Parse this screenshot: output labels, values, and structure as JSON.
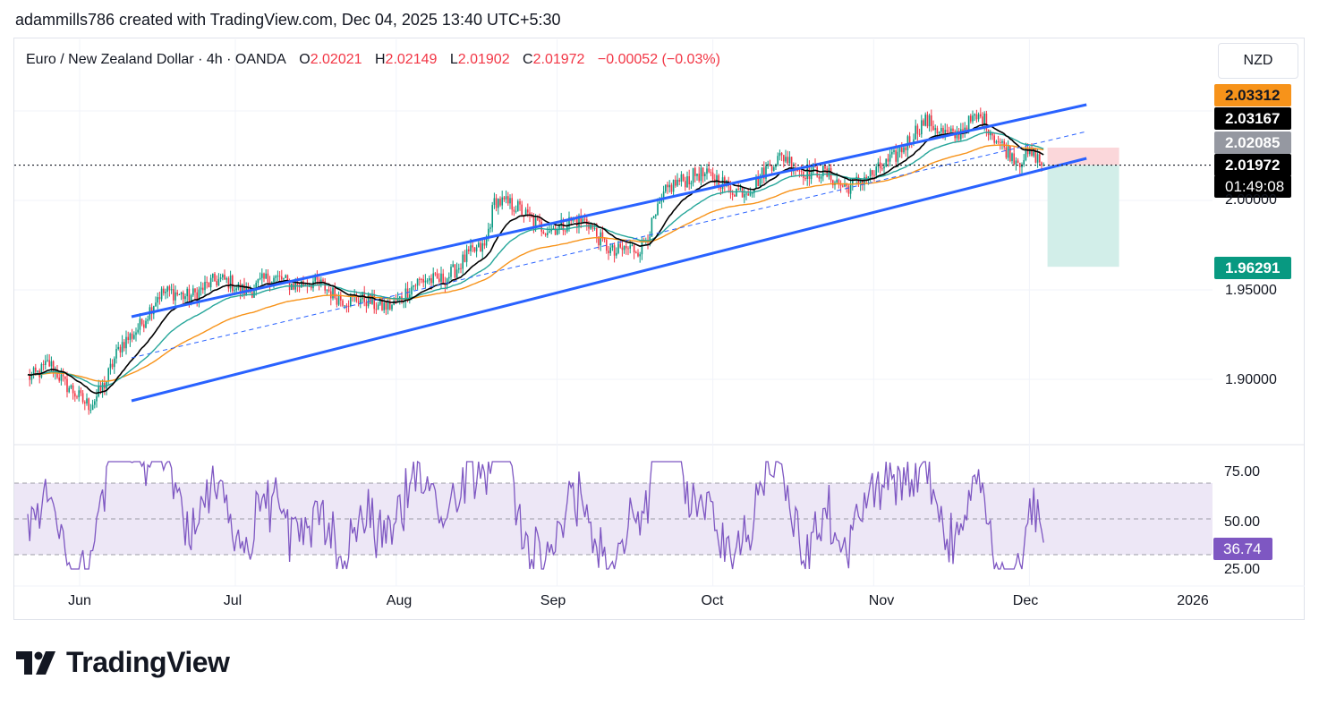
{
  "caption": "adammills786 created with TradingView.com, Dec 04, 2025 13:40 UTC+5:30",
  "legend": {
    "symbol": "Euro / New Zealand Dollar · 4h · OANDA",
    "open_label": "O",
    "open": "2.02021",
    "high_label": "H",
    "high": "2.02149",
    "low_label": "L",
    "low": "2.01902",
    "close_label": "C",
    "close": "2.01972",
    "change": "−0.00052 (−0.03%)"
  },
  "currency_button": "NZD",
  "price_axis": {
    "ticks": [
      "2.00000",
      "1.95000",
      "1.90000"
    ],
    "tags": {
      "ma_long": "2.03312",
      "ma_short": "2.03167",
      "ma_mid": "2.02085",
      "last_price": "2.01972",
      "countdown": "01:49:08",
      "target": "1.96291"
    }
  },
  "rsi_axis": {
    "ticks": [
      "75.00",
      "50.00",
      "25.00"
    ],
    "current": "36.74"
  },
  "time_axis": [
    "Jun",
    "Jul",
    "Aug",
    "Sep",
    "Oct",
    "Nov",
    "Dec",
    "2026"
  ],
  "brand": "TradingView",
  "colors": {
    "up": "#089981",
    "down": "#f23645",
    "channel": "#2962ff",
    "ma_short": "#000000",
    "ma_mid": "#26a69a",
    "ma_long": "#f7931a",
    "rsi": "#7e57c2",
    "rsi_band": "#ede7f6",
    "stop_zone": "#fbd7da",
    "target_zone": "#d2eee9"
  },
  "chart_data": [
    {
      "type": "candlestick",
      "title": "Euro / New Zealand Dollar · 4h · OANDA",
      "ylim": [
        1.87,
        2.05
      ],
      "x_labels": [
        "Jun",
        "Jul",
        "Aug",
        "Sep",
        "Oct",
        "Nov",
        "Dec",
        "2026"
      ],
      "path_points": [
        [
          "May 22",
          1.902
        ],
        [
          "May 26",
          1.91
        ],
        [
          "May 29",
          1.895
        ],
        [
          "Jun 3",
          1.888
        ],
        [
          "Jun 6",
          1.897
        ],
        [
          "Jun 9",
          1.918
        ],
        [
          "Jun 12",
          1.93
        ],
        [
          "Jun 16",
          1.945
        ],
        [
          "Jun 20",
          1.948
        ],
        [
          "Jun 24",
          1.95
        ],
        [
          "Jun 30",
          1.955
        ],
        [
          "Jul 4",
          1.95
        ],
        [
          "Jul 10",
          1.957
        ],
        [
          "Jul 16",
          1.952
        ],
        [
          "Jul 22",
          1.947
        ],
        [
          "Jul 28",
          1.94
        ],
        [
          "Aug 1",
          1.945
        ],
        [
          "Aug 7",
          1.955
        ],
        [
          "Aug 13",
          1.962
        ],
        [
          "Aug 18",
          1.975
        ],
        [
          "Aug 20",
          2.003
        ],
        [
          "Aug 26",
          1.99
        ],
        [
          "Sep 2",
          1.984
        ],
        [
          "Sep 7",
          1.99
        ],
        [
          "Sep 12",
          1.968
        ],
        [
          "Sep 17",
          1.975
        ],
        [
          "Sep 22",
          2.003
        ],
        [
          "Sep 28",
          2.018
        ],
        [
          "Oct 4",
          2.005
        ],
        [
          "Oct 9",
          2.01
        ],
        [
          "Oct 15",
          2.025
        ],
        [
          "Oct 20",
          2.015
        ],
        [
          "Oct 26",
          2.01
        ],
        [
          "Nov 1",
          2.012
        ],
        [
          "Nov 6",
          2.03
        ],
        [
          "Nov 11",
          2.042
        ],
        [
          "Nov 17",
          2.038
        ],
        [
          "Nov 22",
          2.045
        ],
        [
          "Nov 26",
          2.032
        ],
        [
          "Nov 29",
          2.02
        ],
        [
          "Dec 2",
          2.025
        ],
        [
          "Dec 4",
          2.0197
        ]
      ],
      "moving_averages": [
        {
          "key": "ma_short",
          "last": 2.03167
        },
        {
          "key": "ma_mid",
          "last": 2.02085
        },
        {
          "key": "ma_long",
          "last": 2.03312
        }
      ],
      "channel": {
        "upper": [
          [
            "Jun 11",
            1.935
          ],
          [
            "Dec 12",
            2.0535
          ]
        ],
        "lower": [
          [
            "Jun 11",
            1.888
          ],
          [
            "Dec 12",
            2.0235
          ]
        ],
        "mid": [
          [
            "Jun 11",
            1.912
          ],
          [
            "Dec 12",
            2.0385
          ]
        ]
      },
      "position": {
        "entry": 2.01972,
        "stop": 2.0295,
        "target": 1.96291
      }
    },
    {
      "type": "line",
      "ylim": [
        15,
        90
      ],
      "levels": [
        70,
        50,
        30
      ],
      "current": 36.74,
      "x_labels": [
        "Jun",
        "Jul",
        "Aug",
        "Sep",
        "Oct",
        "Nov",
        "Dec",
        "2026"
      ]
    }
  ]
}
